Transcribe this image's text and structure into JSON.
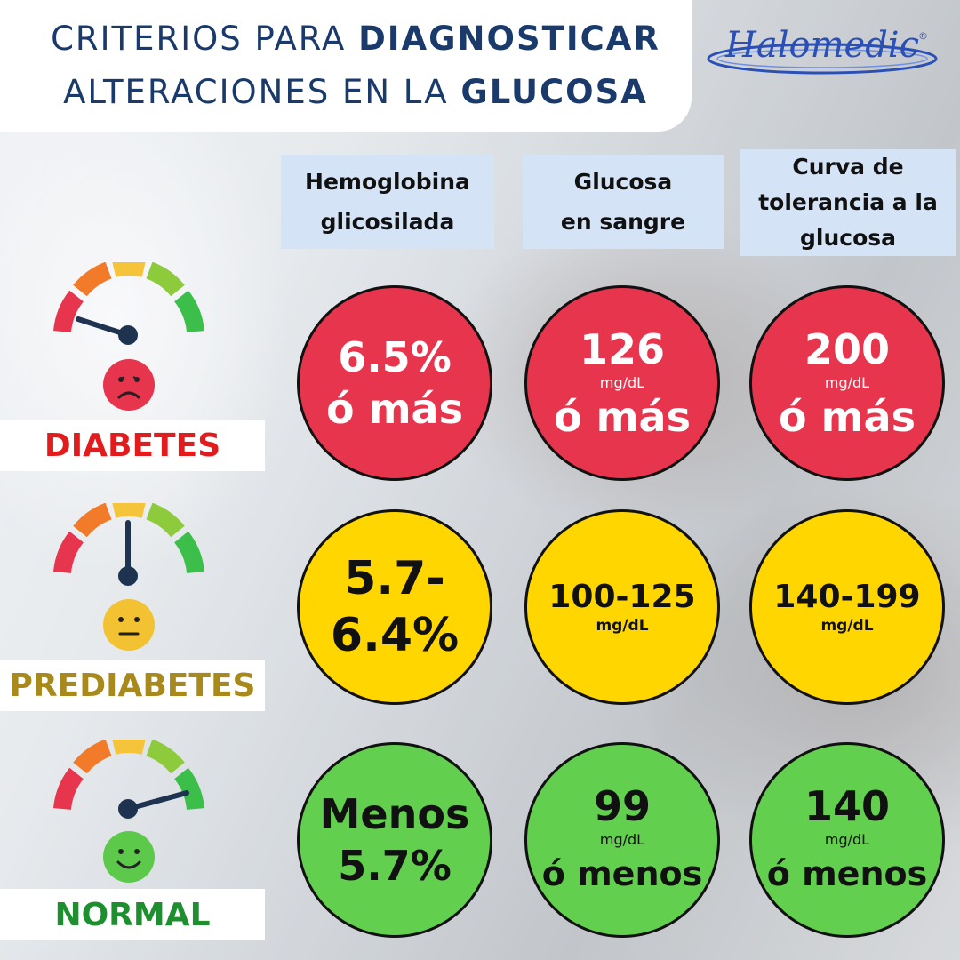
{
  "title": {
    "line1_plain": "CRITERIOS PARA ",
    "line1_bold": "DIAGNOSTICAR",
    "line2_plain": "ALTERACIONES EN LA ",
    "line2_bold": "GLUCOSA"
  },
  "logo": {
    "text": "Halomedic",
    "reg": "®"
  },
  "columns": [
    {
      "line1": "Hemoglobina",
      "line2": "glicosilada"
    },
    {
      "line1": "Glucosa",
      "line2": "en sangre"
    },
    {
      "line1": "Curva de",
      "line2": "tolerancia a la",
      "line3": "glucosa"
    }
  ],
  "rows": {
    "diabetes": {
      "label": "DIABETES",
      "hba1c": {
        "l1": "6.5%",
        "l2": "ó más"
      },
      "glucose": {
        "value": "126",
        "unit": "mg/dL",
        "suffix": "ó más"
      },
      "tolerance": {
        "value": "200",
        "unit": "mg/dL",
        "suffix": "ó más"
      }
    },
    "prediabetes": {
      "label": "PREDIABETES",
      "hba1c": {
        "l1": "5.7-",
        "l2": "6.4%"
      },
      "glucose": {
        "value": "100-125",
        "unit": "mg/dL"
      },
      "tolerance": {
        "value": "140-199",
        "unit": "mg/dL"
      }
    },
    "normal": {
      "label": "NORMAL",
      "hba1c": {
        "l1": "Menos",
        "l2": "5.7%"
      },
      "glucose": {
        "value": "99",
        "unit": "mg/dL",
        "suffix": "ó menos"
      },
      "tolerance": {
        "value": "140",
        "unit": "mg/dL",
        "suffix": "ó menos"
      }
    }
  },
  "colors": {
    "title_blue": "#1a3a6b",
    "header_bg": "#d4e3f5",
    "diabetes_red": "#e6354d",
    "prediabetes_yellow": "#ffd600",
    "normal_green": "#63cf4e",
    "label_diabetes": "#e21c1c",
    "label_prediabetes": "#a8891c",
    "label_normal": "#1e8f2f"
  },
  "icons": {
    "diabetes": [
      "gauge-low-icon",
      "sad-face-icon"
    ],
    "prediabetes": [
      "gauge-mid-icon",
      "neutral-face-icon"
    ],
    "normal": [
      "gauge-high-icon",
      "happy-face-icon"
    ]
  }
}
